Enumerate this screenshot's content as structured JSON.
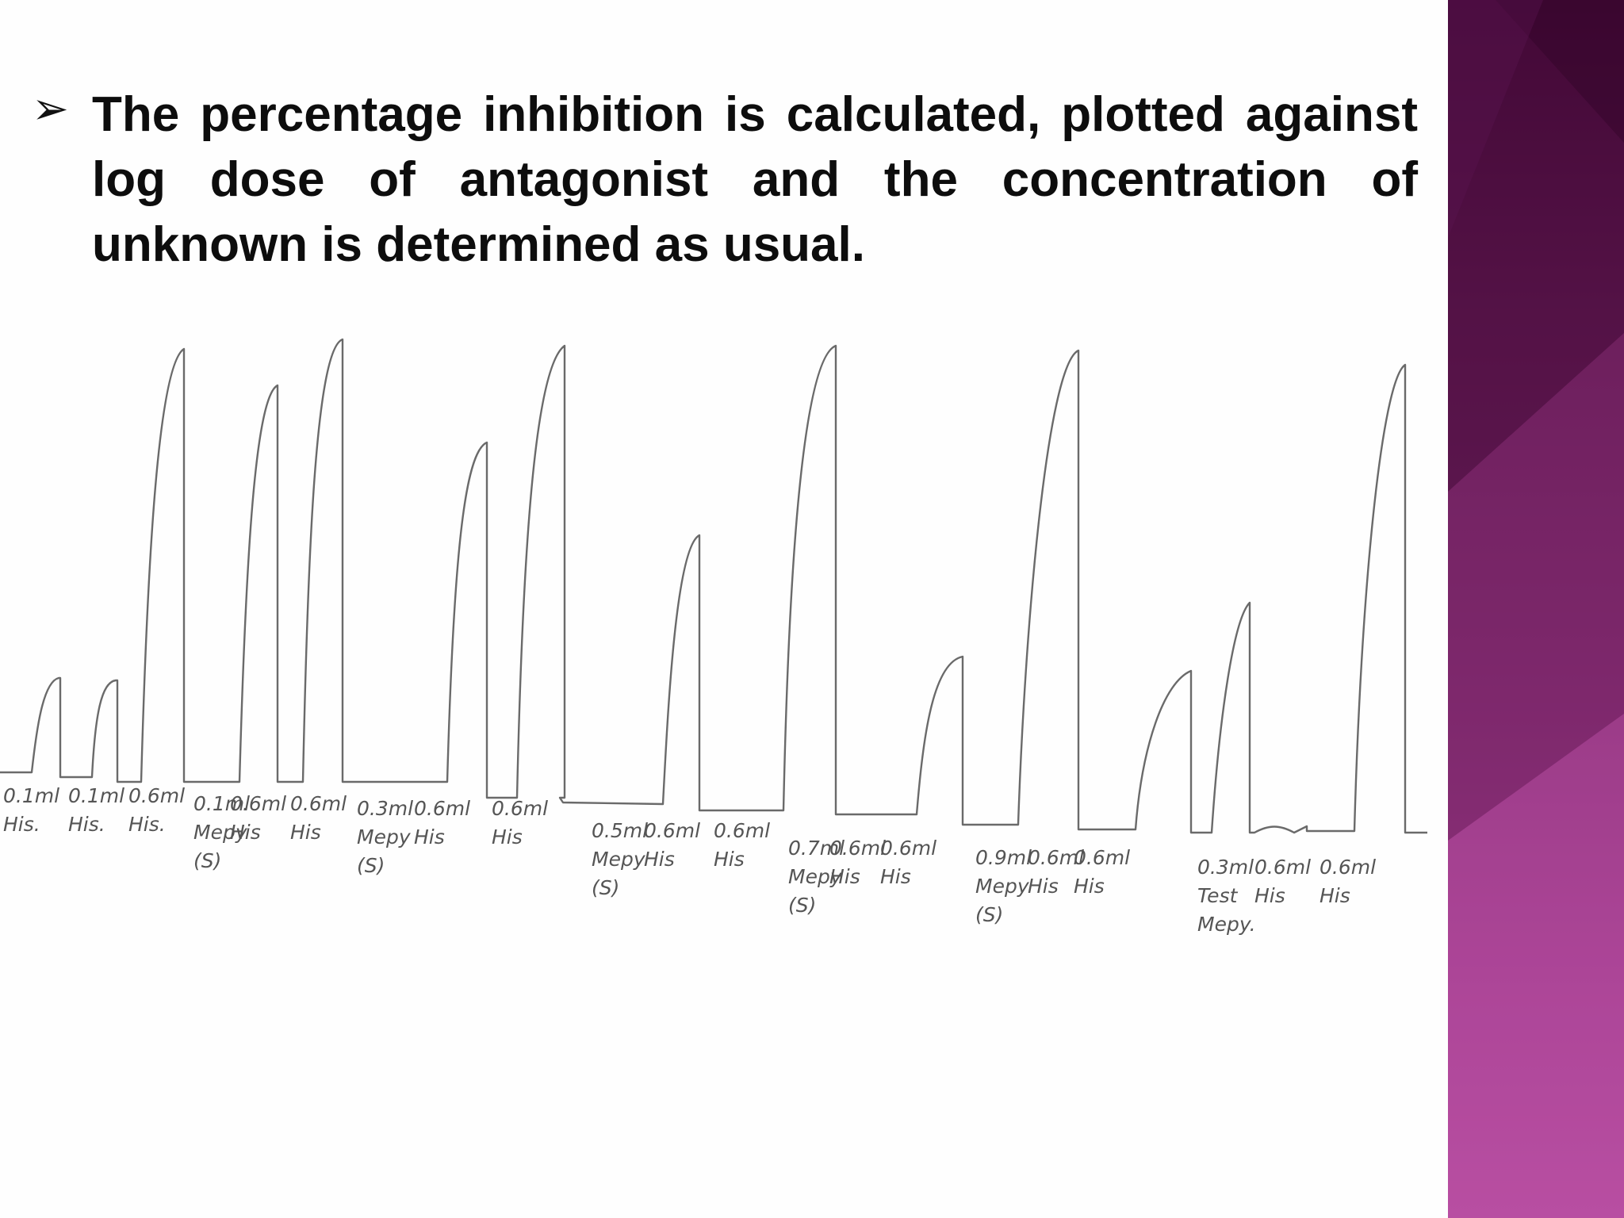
{
  "bullet": {
    "icon": "arrow-bullet-icon",
    "text": "The percentage inhibition is calculated, plotted against log dose of antagonist and the concentration of unknown is determined as usual."
  },
  "sidebar": {
    "colors": [
      "#4a0b3c",
      "#8c2f79",
      "#b64a9f"
    ]
  },
  "recording": {
    "labels": [
      {
        "lines": [
          "0.1ml",
          "His."
        ]
      },
      {
        "lines": [
          "0.1ml",
          "His."
        ]
      },
      {
        "lines": [
          "0.6ml",
          "His."
        ]
      },
      {
        "lines": [
          "0.1ml",
          "Mepy",
          "(S)"
        ]
      },
      {
        "lines": [
          "0.6ml",
          "His"
        ]
      },
      {
        "lines": [
          "0.6ml",
          "His"
        ]
      },
      {
        "lines": [
          "0.3ml",
          "Mepy",
          "(S)"
        ]
      },
      {
        "lines": [
          "0.6ml",
          "His"
        ]
      },
      {
        "lines": [
          "0.6ml",
          "His"
        ]
      },
      {
        "lines": [
          "0.5ml",
          "Mepy",
          "(S)"
        ]
      },
      {
        "lines": [
          "0.6ml",
          "His"
        ]
      },
      {
        "lines": [
          "0.6ml",
          "His"
        ]
      },
      {
        "lines": [
          "0.7ml",
          "Mepy",
          "(S)"
        ]
      },
      {
        "lines": [
          "0.6ml",
          "His"
        ]
      },
      {
        "lines": [
          "0.6ml",
          "His"
        ]
      },
      {
        "lines": [
          "0.9ml",
          "Mepy",
          "(S)"
        ]
      },
      {
        "lines": [
          "0.6ml",
          "His"
        ]
      },
      {
        "lines": [
          "0.6ml",
          "His"
        ]
      },
      {
        "lines": [
          "0.3ml",
          "Test",
          "Mepy."
        ]
      },
      {
        "lines": [
          "0.6ml",
          "His"
        ]
      },
      {
        "lines": [
          "0.6ml",
          "His"
        ]
      }
    ]
  }
}
